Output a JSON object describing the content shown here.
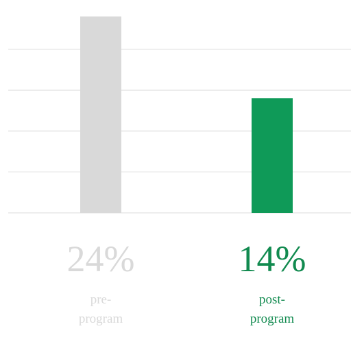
{
  "chart_data": {
    "type": "bar",
    "categories": [
      "pre-program",
      "post-program"
    ],
    "values": [
      24,
      14
    ],
    "value_labels": [
      "24%",
      "14%"
    ],
    "colors": [
      "#d9d9d9",
      "#0f9a58"
    ],
    "label_colors": [
      "#d9d9d9",
      "#118a4f"
    ],
    "ylim": [
      0,
      24
    ],
    "yticks": [
      0,
      5,
      10,
      15,
      20
    ],
    "grid": true
  }
}
